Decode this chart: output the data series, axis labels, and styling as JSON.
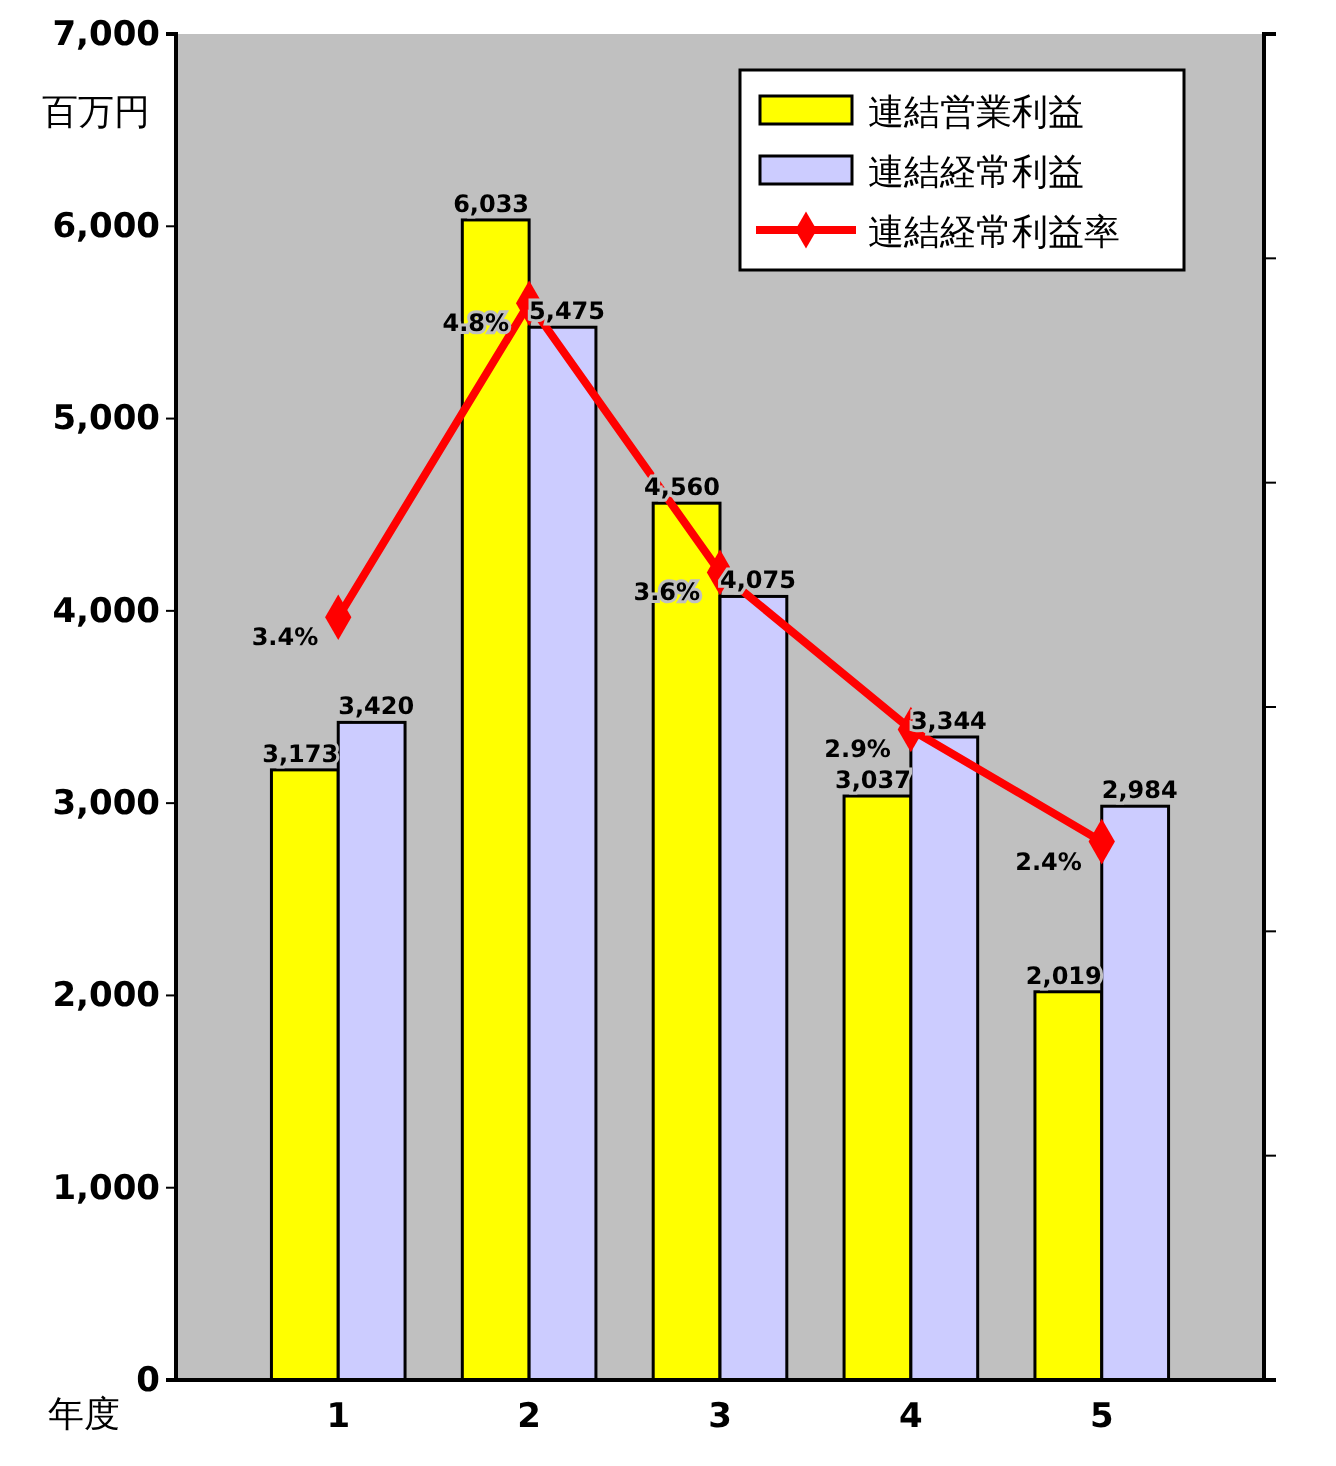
{
  "chart_data": {
    "type": "bar",
    "xlabel": "年度",
    "ylabel": "百万円",
    "categories": [
      "1",
      "2",
      "3",
      "4",
      "5"
    ],
    "series": [
      {
        "name": "連結営業利益",
        "color": "#ffff00",
        "values": [
          3173,
          6033,
          4560,
          3037,
          2019
        ],
        "value_labels": [
          "3,173",
          "6,033",
          "4,560",
          "3,037",
          "2,019"
        ]
      },
      {
        "name": "連結経常利益",
        "color": "#ccccff",
        "values": [
          3420,
          5475,
          4075,
          3344,
          2984
        ],
        "value_labels": [
          "3,420",
          "5,475",
          "4,075",
          "3,344",
          "2,984"
        ]
      },
      {
        "name": "連結経常利益率",
        "type": "line",
        "axis": "y2",
        "color": "#ff0000",
        "marker": "diamond",
        "values": [
          3.4,
          4.8,
          3.6,
          2.9,
          2.4
        ],
        "value_labels": [
          "3.4%",
          "4.8%",
          "3.6%",
          "2.9%",
          "2.4%"
        ]
      }
    ],
    "ylim": [
      0,
      7000
    ],
    "yticks": [
      {
        "value": 0,
        "label": "0"
      },
      {
        "value": 1000,
        "label": "1,000"
      },
      {
        "value": 2000,
        "label": "2,000"
      },
      {
        "value": 3000,
        "label": "3,000"
      },
      {
        "value": 4000,
        "label": "4,000"
      },
      {
        "value": 5000,
        "label": "5,000"
      },
      {
        "value": 6000,
        "label": "6,000"
      },
      {
        "value": 7000,
        "label": "7,000"
      }
    ],
    "y2lim": [
      0,
      6
    ],
    "y2ticks": [
      {
        "value": 0,
        "label": null
      },
      {
        "value": 1,
        "label": null
      },
      {
        "value": 2,
        "label": null
      },
      {
        "value": 3,
        "label": null
      },
      {
        "value": 4,
        "label": null
      },
      {
        "value": 5,
        "label": null
      },
      {
        "value": 6,
        "label": null
      }
    ],
    "data_labels": true,
    "legend": "top right",
    "grid": false
  }
}
